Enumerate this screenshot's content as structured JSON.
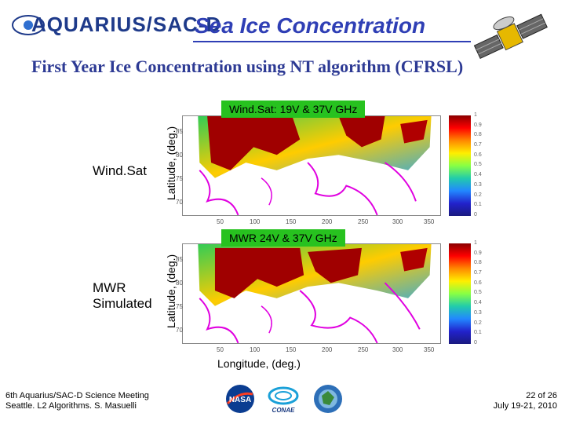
{
  "header": {
    "logo_text": "AQUARIUS/SAC-D",
    "title": "Sea Ice Concentration",
    "subtitle": "First Year Ice Concentration using NT algorithm (CFRSL)"
  },
  "panels": [
    {
      "row_label": "Wind.Sat",
      "y_axis_label": "Latitude, (deg.)",
      "badge": "Wind.Sat: 19V & 37V GHz",
      "x_ticks": [
        "50",
        "100",
        "150",
        "200",
        "250",
        "300",
        "350"
      ],
      "y_ticks": [
        "85",
        "80",
        "75",
        "70"
      ],
      "colorbar_ticks": [
        "1",
        "0.9",
        "0.8",
        "0.7",
        "0.6",
        "0.5",
        "0.4",
        "0.3",
        "0.2",
        "0.1",
        "0"
      ]
    },
    {
      "row_label_line1": "MWR",
      "row_label_line2": "Simulated",
      "y_axis_label": "Latitude, (deg.)",
      "badge": "MWR 24V & 37V GHz",
      "x_ticks": [
        "50",
        "100",
        "150",
        "200",
        "250",
        "300",
        "350"
      ],
      "y_ticks": [
        "85",
        "80",
        "75",
        "70"
      ],
      "colorbar_ticks": [
        "1",
        "0.9",
        "0.8",
        "0.7",
        "0.6",
        "0.5",
        "0.4",
        "0.3",
        "0.2",
        "0.1",
        "0"
      ]
    }
  ],
  "x_axis_label": "Longitude, (deg.)",
  "footer": {
    "meeting_line1": "6th Aquarius/SAC-D Science Meeting",
    "meeting_line2": "Seattle. L2 Algorithms. S. Masuelli",
    "page_line1": "22 of 26",
    "page_line2": "July 19-21, 2010",
    "logos": [
      "NASA",
      "CONAE",
      "ASI"
    ]
  },
  "colors": {
    "title_blue": "#2f3fb5",
    "badge_green": "#27c21f",
    "ice_red": "#8b0000",
    "contour_magenta": "#e000e0"
  }
}
